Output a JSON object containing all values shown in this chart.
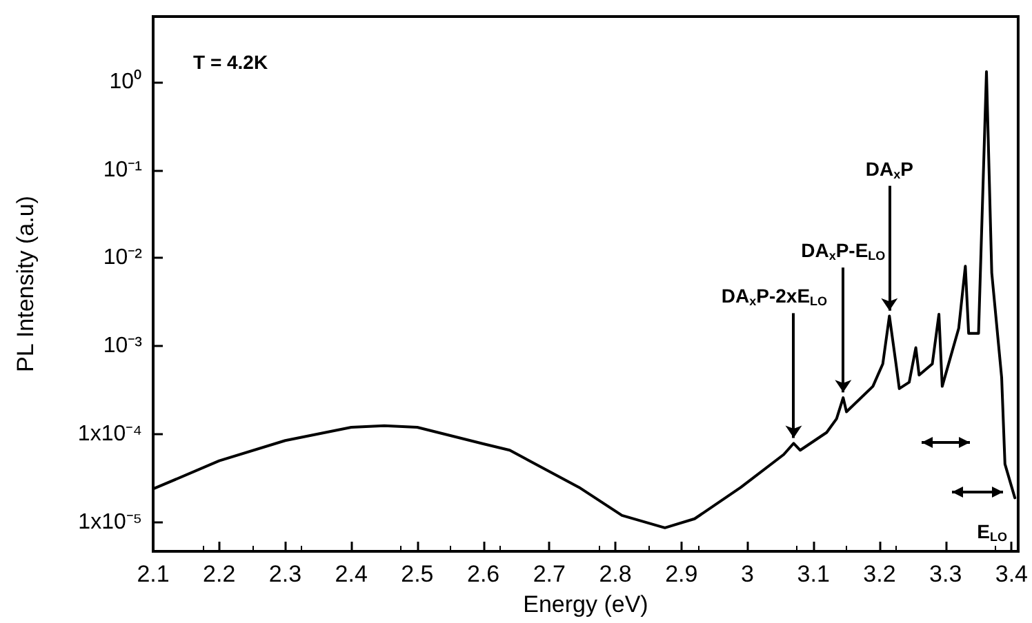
{
  "chart_data": {
    "type": "line",
    "xlabel": "Energy (eV)",
    "ylabel": "PL Intensity (a.u)",
    "log": "y",
    "grid": false,
    "marker": "none",
    "line_style": "solid",
    "xlim": [
      2.1,
      3.41
    ],
    "xticks": [
      2.1,
      2.2,
      2.3,
      2.4,
      2.5,
      2.6,
      2.7,
      2.8,
      2.9,
      3.0,
      3.1,
      3.2,
      3.3,
      3.4
    ],
    "ylim": [
      4.7e-06,
      5.5
    ],
    "yticks": [
      {
        "value": 1e-05,
        "label": "1x10⁻⁵"
      },
      {
        "value": 0.0001,
        "label": "1x10⁻⁴"
      },
      {
        "value": 0.001,
        "label": "10⁻³"
      },
      {
        "value": 0.01,
        "label": "10⁻²"
      },
      {
        "value": 0.1,
        "label": "10⁻¹"
      },
      {
        "value": 1,
        "label": "10⁰"
      }
    ],
    "x": [
      2.1,
      2.2,
      2.3,
      2.4,
      2.45,
      2.5,
      2.6,
      2.64,
      2.745,
      2.81,
      2.875,
      2.92,
      2.99,
      3.055,
      3.07,
      3.08,
      3.12,
      3.135,
      3.145,
      3.15,
      3.19,
      3.205,
      3.215,
      3.225,
      3.23,
      3.245,
      3.255,
      3.26,
      3.28,
      3.29,
      3.295,
      3.32,
      3.33,
      3.335,
      3.35,
      3.362,
      3.37,
      3.385,
      3.39,
      3.405
    ],
    "series": [
      {
        "color": "#000000",
        "values": [
          2.4e-05,
          5e-05,
          8.5e-05,
          0.00012,
          0.000125,
          0.00012,
          7.8e-05,
          6.6e-05,
          2.5e-05,
          1.2e-05,
          8.7e-06,
          1.1e-05,
          2.5e-05,
          5.9e-05,
          7.9e-05,
          6.6e-05,
          0.000105,
          0.00015,
          0.00026,
          0.00018,
          0.00035,
          0.00063,
          0.0022,
          0.00063,
          0.00033,
          0.00039,
          0.00096,
          0.00047,
          0.00063,
          0.0023,
          0.00035,
          0.0016,
          0.0081,
          0.0014,
          0.0014,
          1.3,
          0.0068,
          0.00044,
          4.6e-05,
          1.9e-05
        ]
      }
    ],
    "annotations": [
      "T = 4.2K",
      {
        "text": "DA$_{x}$P-2xE$_{LO}$",
        "x": 3.07,
        "y": 7.9e-05
      },
      {
        "text": "DA$_{x}$P-E$_{LO}$",
        "x": 3.145,
        "y": 0.00026
      },
      {
        "text": "DA$_{x}$P",
        "x": 3.215,
        "y": 0.0022
      },
      "E$_{LO}$"
    ]
  }
}
